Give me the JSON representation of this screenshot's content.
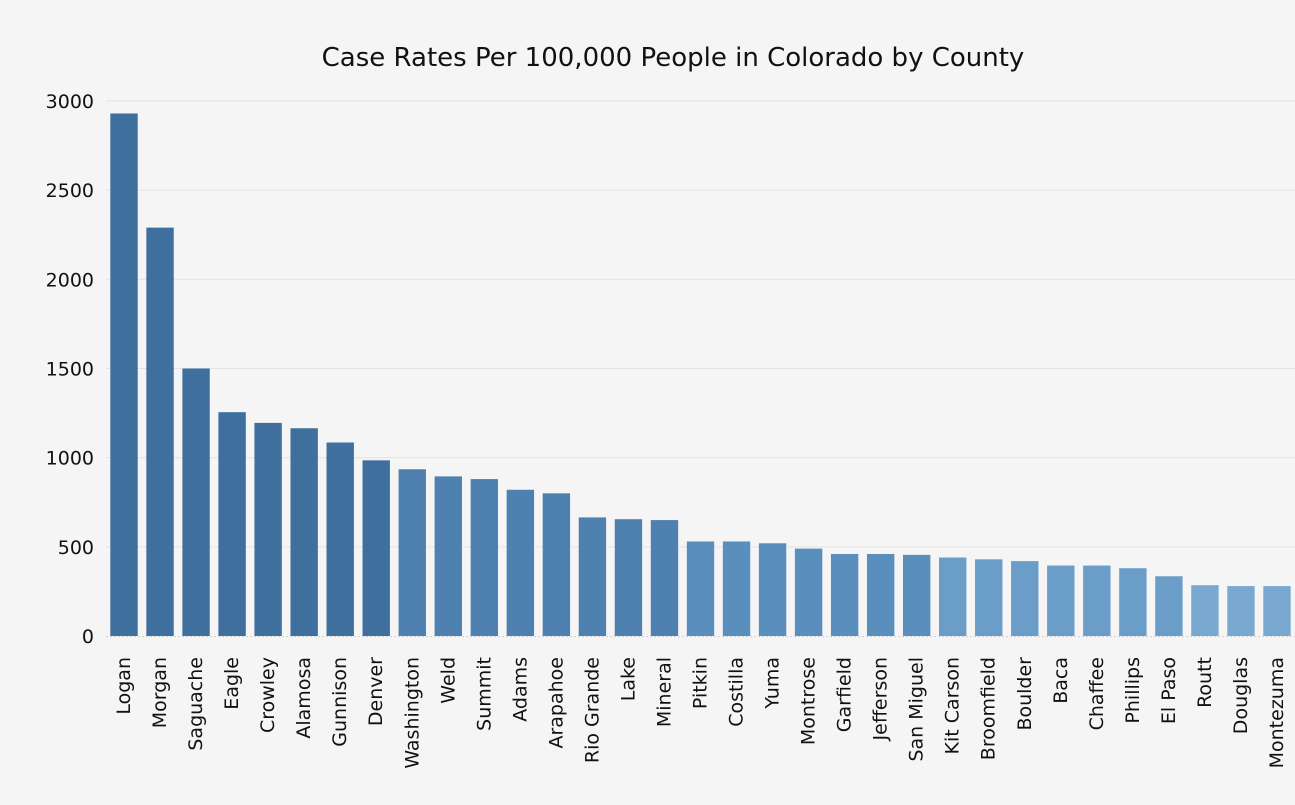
{
  "chart_data": {
    "type": "bar",
    "title": "Case Rates Per 100,000 People in Colorado by County",
    "xlabel": "",
    "ylabel": "",
    "ylim": [
      0,
      3000
    ],
    "yticks": [
      0,
      500,
      1000,
      1500,
      2000,
      2500,
      3000
    ],
    "grid": true,
    "legend": "none",
    "categories": [
      "Logan",
      "Morgan",
      "Saguache",
      "Eagle",
      "Crowley",
      "Alamosa",
      "Gunnison",
      "Denver",
      "Washington",
      "Weld",
      "Summit",
      "Adams",
      "Arapahoe",
      "Rio Grande",
      "Lake",
      "Mineral",
      "Pitkin",
      "Costilla",
      "Yuma",
      "Montrose",
      "Garfield",
      "Jefferson",
      "San Miguel",
      "Kit Carson",
      "Broomfield",
      "Boulder",
      "Baca",
      "Chaffee",
      "Phillips",
      "El Paso",
      "Routt",
      "Douglas",
      "Montezuma"
    ],
    "values": [
      2930,
      2290,
      1500,
      1255,
      1195,
      1165,
      1085,
      985,
      935,
      895,
      880,
      820,
      800,
      665,
      655,
      650,
      530,
      530,
      520,
      490,
      460,
      460,
      455,
      440,
      430,
      420,
      395,
      395,
      380,
      335,
      285,
      280,
      280
    ],
    "colors": [
      "#3f6f9d",
      "#3f6f9d",
      "#3f6f9d",
      "#3f6f9d",
      "#3f6f9d",
      "#3f6f9d",
      "#3f6f9d",
      "#3f6f9d",
      "#4f81b0",
      "#4f81b0",
      "#4f81b0",
      "#4f81b0",
      "#4f81b0",
      "#4f81b0",
      "#4f81b0",
      "#4f81b0",
      "#5a8ebd",
      "#5a8ebd",
      "#5a8ebd",
      "#5a8ebd",
      "#5a8ebd",
      "#5a8ebd",
      "#5a8ebd",
      "#6a9dc7",
      "#6a9dc7",
      "#6a9dc7",
      "#6a9dc7",
      "#6a9dc7",
      "#6a9dc7",
      "#6a9dc7",
      "#79a9d1",
      "#79a9d1",
      "#79a9d1"
    ]
  }
}
